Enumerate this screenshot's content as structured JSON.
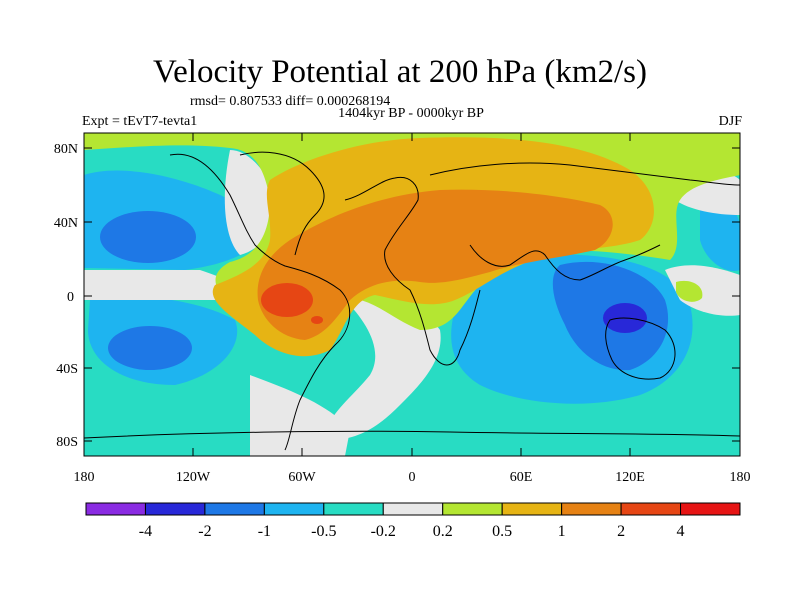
{
  "title": "Velocity Potential at 200 hPa (km2/s)",
  "stats": "rmsd= 0.807533 diff= 0.000268194",
  "period": "1404kyr BP - 0000kyr BP",
  "experiment": "Expt = tEvT7-tevta1",
  "season": "DJF",
  "lat_labels": [
    "80N",
    "40N",
    "0",
    "40S",
    "80S"
  ],
  "lon_labels": [
    "180",
    "120W",
    "60W",
    "0",
    "60E",
    "120E",
    "180"
  ],
  "colorbar": {
    "labels": [
      "-4",
      "-2",
      "-1",
      "-0.5",
      "-0.2",
      "0.2",
      "0.5",
      "1",
      "2",
      "4"
    ],
    "colors": [
      "#8a2be2",
      "#2828d8",
      "#1e78e6",
      "#1eb4f0",
      "#28dcc3",
      "#e8e8e8",
      "#b4e632",
      "#e6b414",
      "#e68214",
      "#e64614",
      "#e61414"
    ]
  }
}
